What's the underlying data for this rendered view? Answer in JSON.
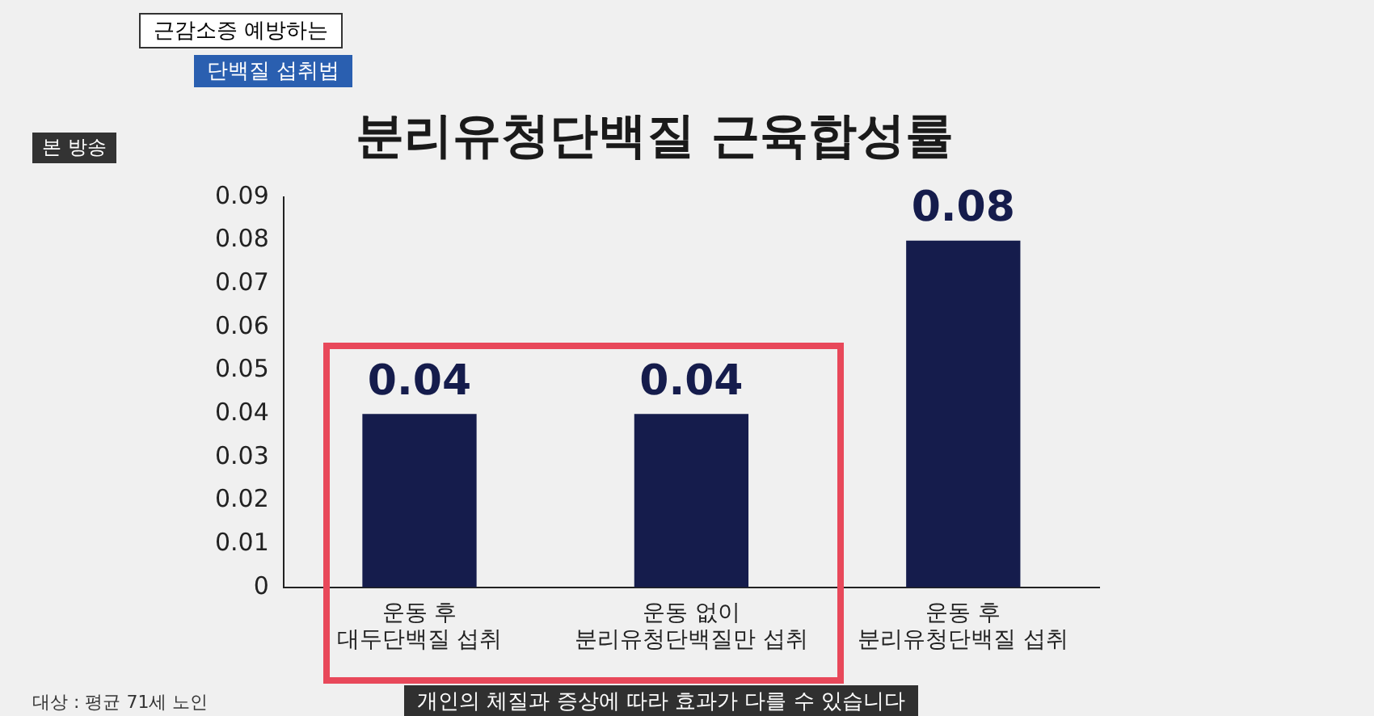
{
  "chart_data": {
    "type": "bar",
    "title": "분리유청단백질 근육합성률",
    "categories": [
      "운동 후\n대두단백질 섭취",
      "운동 없이\n분리유청단백질만 섭취",
      "운동 후\n분리유청단백질 섭취"
    ],
    "values": [
      0.04,
      0.04,
      0.08
    ],
    "color": "#151c4c",
    "data_labels": true,
    "ylim": [
      0,
      0.09
    ],
    "yticks": [
      0,
      0.01,
      0.02,
      0.03,
      0.04,
      0.05,
      0.06,
      0.07,
      0.08,
      0.09
    ],
    "grid": false,
    "legend": false,
    "annotations": [
      "근감소증 예방하는",
      "단백질 섭취법",
      "본 방송",
      "대상 : 평균 71세 노인",
      "개인의 체질과 증상에 따라 효과가 다를 수 있습니다"
    ]
  }
}
